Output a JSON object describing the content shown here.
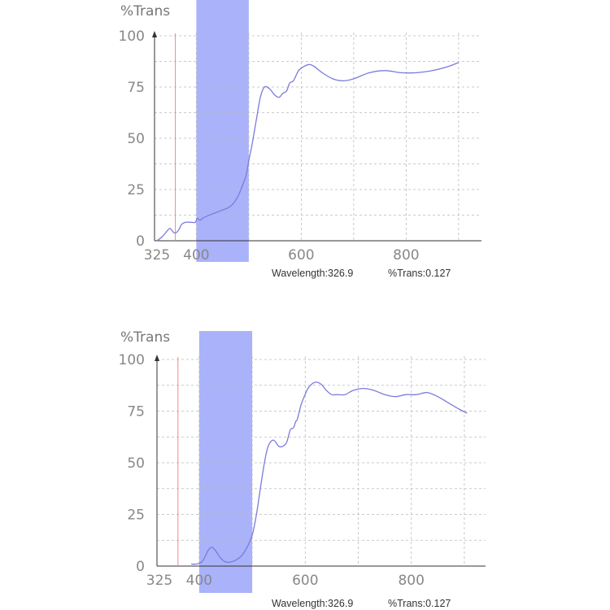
{
  "colors": {
    "curve": "#7b7bdc",
    "band": "#aab2fa",
    "cursor": "#f08a8a",
    "axis": "#333333",
    "grid": "#bbbbbb"
  },
  "chart_data": [
    {
      "type": "line",
      "ylabel": "%Trans",
      "yticks": [
        "0",
        "25",
        "50",
        "75",
        "100"
      ],
      "xticks": [
        "325",
        "400",
        "600",
        "800"
      ],
      "xtick_values": [
        325,
        400,
        600,
        800
      ],
      "ylim": [
        0,
        100
      ],
      "xlim": [
        325,
        925
      ],
      "grid": true,
      "highlight_band": [
        400,
        500
      ],
      "cursor_x": 360,
      "readout": {
        "wavelength": "Wavelength:326.9",
        "trans": "%Trans:0.127"
      },
      "series": [
        {
          "x": [
            325,
            335,
            345,
            350,
            357,
            362,
            368,
            372,
            380,
            390,
            398,
            402,
            407,
            412,
            420,
            430,
            440,
            450,
            460,
            470,
            480,
            488,
            495,
            500,
            507,
            515,
            522,
            530,
            540,
            550,
            558,
            565,
            572,
            578,
            585,
            595,
            605,
            615,
            625,
            640,
            660,
            680,
            700,
            730,
            760,
            790,
            820,
            850,
            880,
            900
          ],
          "y": [
            0,
            2,
            5,
            6,
            4,
            4,
            6,
            8,
            9,
            9,
            9,
            11,
            10,
            11,
            12,
            13,
            14,
            15,
            16,
            18,
            22,
            27,
            32,
            39,
            48,
            60,
            70,
            75,
            74,
            71,
            70,
            72,
            73,
            77,
            78,
            83,
            85,
            86,
            85,
            82,
            79,
            78,
            79,
            82,
            83,
            82,
            82,
            83,
            85,
            87
          ]
        }
      ]
    },
    {
      "type": "line",
      "ylabel": "%Trans",
      "yticks": [
        "0",
        "25",
        "50",
        "75",
        "100"
      ],
      "xticks": [
        "325",
        "400",
        "600",
        "800"
      ],
      "xtick_values": [
        325,
        400,
        600,
        800
      ],
      "ylim": [
        0,
        100
      ],
      "xlim": [
        325,
        925
      ],
      "grid": true,
      "highlight_band": [
        400,
        500
      ],
      "cursor_x": 360,
      "readout": {
        "wavelength": "Wavelength:326.9",
        "trans": "%Trans:0.127"
      },
      "series": [
        {
          "x": [
            385,
            395,
            405,
            412,
            418,
            425,
            432,
            440,
            450,
            460,
            470,
            480,
            490,
            500,
            508,
            515,
            523,
            530,
            540,
            550,
            558,
            565,
            572,
            578,
            582,
            585,
            592,
            598,
            605,
            612,
            620,
            630,
            640,
            650,
            660,
            675,
            690,
            710,
            730,
            750,
            770,
            790,
            810,
            830,
            850,
            870,
            890,
            905
          ],
          "y": [
            1,
            1,
            2,
            5,
            8,
            9,
            7,
            4,
            2,
            2,
            3,
            5,
            9,
            15,
            25,
            37,
            50,
            58,
            61,
            58,
            58,
            60,
            66,
            67,
            70,
            71,
            78,
            82,
            86,
            88,
            89,
            88,
            85,
            83,
            83,
            83,
            85,
            86,
            85,
            83,
            82,
            83,
            83,
            84,
            82,
            79,
            76,
            74
          ]
        }
      ]
    }
  ]
}
